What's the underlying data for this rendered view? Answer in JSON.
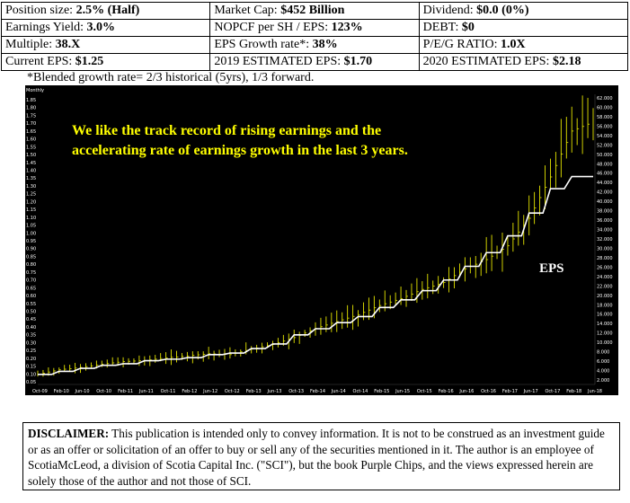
{
  "metrics": {
    "row1": [
      {
        "label": "Position size: ",
        "value": "2.5% (Half)"
      },
      {
        "label": "Market Cap: ",
        "value": "$452 Billion"
      },
      {
        "label": "Dividend: ",
        "value": "$0.0 (0%)"
      }
    ],
    "row2": [
      {
        "label": "Earnings Yield: ",
        "value": "3.0%"
      },
      {
        "label": "NOPCF per SH / EPS: ",
        "value": "123%"
      },
      {
        "label": "DEBT: ",
        "value": "$0"
      }
    ],
    "row3": [
      {
        "label": "Multiple: ",
        "value": "38.X"
      },
      {
        "label": "EPS Growth rate*: ",
        "value": "38%"
      },
      {
        "label": "P/E/G RATIO: ",
        "value": "1.0X"
      }
    ],
    "row4": [
      {
        "label": "Current EPS: ",
        "value": "$1.25"
      },
      {
        "label": "2019 ESTIMATED EPS: ",
        "value": "$1.70"
      },
      {
        "label": "2020 ESTIMATED EPS: ",
        "value": "$2.18"
      }
    ]
  },
  "blended_note": "*Blended growth rate= 2/3 historical (5yrs), 1/3 forward.",
  "chart": {
    "callout_line1": "We like the track record of rising earnings and the",
    "callout_line2": "accelerating rate  of earnings growth in the last 3 years.",
    "eps_label": "EPS",
    "header_text": "Monthly",
    "colors": {
      "price": "#e6e600",
      "eps": "#ffffff",
      "background": "#000000",
      "axis_text": "#ffffff"
    }
  },
  "chart_data": {
    "type": "line",
    "title": "",
    "x": [
      "Oct-09",
      "Feb-10",
      "Jun-10",
      "Oct-10",
      "Feb-11",
      "Jun-11",
      "Oct-11",
      "Feb-12",
      "Jun-12",
      "Oct-12",
      "Feb-13",
      "Jun-13",
      "Oct-13",
      "Feb-14",
      "Jun-14",
      "Oct-14",
      "Feb-15",
      "Jun-15",
      "Oct-15",
      "Feb-16",
      "Jun-16",
      "Oct-16",
      "Feb-17",
      "Jun-17",
      "Oct-17",
      "Feb-18",
      "Jun-18"
    ],
    "left_ticks": [
      "1.85",
      "1.80",
      "1.75",
      "1.70",
      "1.65",
      "1.60",
      "1.55",
      "1.50",
      "1.45",
      "1.40",
      "1.35",
      "1.30",
      "1.25",
      "1.20",
      "1.15",
      "1.10",
      "1.05",
      "1.00",
      "0.95",
      "0.90",
      "0.85",
      "0.80",
      "0.75",
      "0.70",
      "0.65",
      "0.60",
      "0.55",
      "0.50",
      "0.45",
      "0.40",
      "0.35",
      "0.30",
      "0.25",
      "0.20",
      "0.15",
      "0.10",
      "0.05"
    ],
    "right_ticks": [
      "62.000",
      "60.000",
      "58.000",
      "56.000",
      "54.000",
      "52.000",
      "50.000",
      "48.000",
      "46.000",
      "44.000",
      "42.000",
      "40.000",
      "38.000",
      "36.000",
      "34.000",
      "32.000",
      "30.000",
      "28.000",
      "26.000",
      "24.000",
      "22.000",
      "20.000",
      "18.000",
      "16.000",
      "14.000",
      "12.000",
      "10.000",
      "8.000",
      "6.000",
      "4.000",
      "2.000"
    ],
    "ylim_eps": [
      0.0,
      1.9
    ],
    "ylim_price": [
      0,
      63
    ],
    "series": [
      {
        "name": "Price",
        "values": [
          2.0,
          3.0,
          3.5,
          4.2,
          4.8,
          5.0,
          5.6,
          6.0,
          6.5,
          6.3,
          7.5,
          8.5,
          10.0,
          12.0,
          13.5,
          15.0,
          17.0,
          18.5,
          20.5,
          22.0,
          25.0,
          27.0,
          30.0,
          36.0,
          45.0,
          55.0,
          57.0
        ]
      },
      {
        "name": "EPS",
        "values": [
          0.06,
          0.08,
          0.1,
          0.12,
          0.13,
          0.15,
          0.16,
          0.17,
          0.19,
          0.2,
          0.23,
          0.26,
          0.32,
          0.36,
          0.4,
          0.44,
          0.5,
          0.55,
          0.61,
          0.68,
          0.77,
          0.86,
          0.97,
          1.12,
          1.28,
          1.36,
          1.36
        ]
      }
    ]
  },
  "disclaimer": {
    "label": "DISCLAIMER:",
    "text": " This publication is intended only to convey information.  It is not to be construed as an investment guide or as an offer or solicitation of an offer to buy or sell any of the securities mentioned in it.  The author is an employee of ScotiaMcLeod, a division of Scotia Capital Inc. (\"SCI\"), but the book Purple Chips, and the views expressed herein are solely those of the author and not those of SCI."
  }
}
